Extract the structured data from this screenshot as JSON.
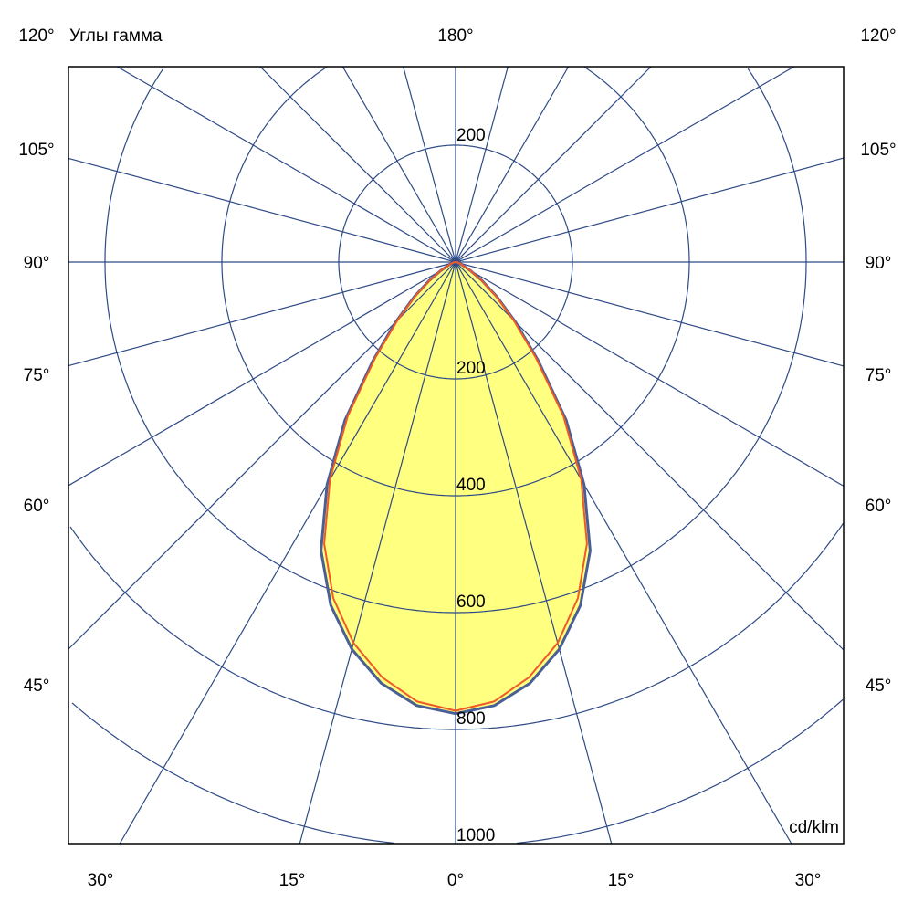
{
  "chart_data": {
    "type": "polar",
    "title": "Углы гамма",
    "unit_label": "cd/klm",
    "radial_ticks": [
      200,
      400,
      600,
      800,
      1000
    ],
    "upper_radial_tick": "200",
    "radial_tick_labels": [
      "200",
      "400",
      "600",
      "800",
      "1000"
    ],
    "radial_range": [
      0,
      1000
    ],
    "angle_grid_step_deg": 15,
    "left_angle_labels": [
      "120°",
      "105°",
      "90°",
      "75°",
      "60°",
      "45°"
    ],
    "right_angle_labels": [
      "120°",
      "105°",
      "90°",
      "75°",
      "60°",
      "45°"
    ],
    "top_angle_label": "180°",
    "bottom_angle_labels": [
      "30°",
      "15°",
      "0°",
      "15°",
      "30°"
    ],
    "series": [
      {
        "color": "#4a5f96",
        "angles": [
          0,
          5,
          10,
          15,
          20,
          25,
          30,
          35,
          40,
          45,
          50,
          55,
          60,
          70,
          80,
          90
        ],
        "values": [
          773,
          762,
          732,
          686,
          625,
          545,
          440,
          330,
          220,
          145,
          92,
          55,
          30,
          10,
          3,
          0
        ]
      },
      {
        "color": "#f05a28",
        "angles": [
          0,
          5,
          10,
          15,
          20,
          25,
          30,
          35,
          40,
          45,
          50,
          55,
          60,
          70,
          80,
          90
        ],
        "values": [
          768,
          755,
          722,
          675,
          612,
          532,
          430,
          322,
          214,
          140,
          89,
          53,
          29,
          9,
          3,
          0
        ]
      }
    ],
    "fill_color": "#ffff80",
    "grid_color": "#2e4a86"
  }
}
